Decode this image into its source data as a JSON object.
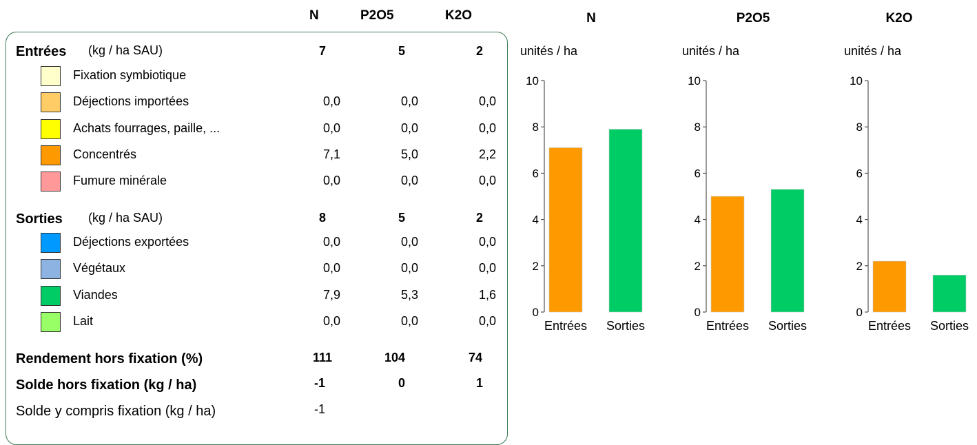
{
  "columns": [
    "N",
    "P2O5",
    "K2O"
  ],
  "panel": {
    "entrees": {
      "title": "Entrées",
      "unit": "(kg / ha SAU)",
      "totals": [
        "7",
        "5",
        "2"
      ],
      "items": [
        {
          "label": "Fixation symbiotique",
          "color": "#ffffcc",
          "values": [
            "",
            "",
            ""
          ]
        },
        {
          "label": "Déjections importées",
          "color": "#ffcc66",
          "values": [
            "0,0",
            "0,0",
            "0,0"
          ]
        },
        {
          "label": "Achats fourrages, paille, ...",
          "color": "#ffff00",
          "values": [
            "0,0",
            "0,0",
            "0,0"
          ]
        },
        {
          "label": "Concentrés",
          "color": "#ff9900",
          "values": [
            "7,1",
            "5,0",
            "2,2"
          ]
        },
        {
          "label": "Fumure minérale",
          "color": "#ff9999",
          "values": [
            "0,0",
            "0,0",
            "0,0"
          ]
        }
      ]
    },
    "sorties": {
      "title": "Sorties",
      "unit": "(kg / ha SAU)",
      "totals": [
        "8",
        "5",
        "2"
      ],
      "items": [
        {
          "label": "Déjections exportées",
          "color": "#0099ff",
          "values": [
            "0,0",
            "0,0",
            "0,0"
          ]
        },
        {
          "label": "Végétaux",
          "color": "#8db3e2",
          "values": [
            "0,0",
            "0,0",
            "0,0"
          ]
        },
        {
          "label": "Viandes",
          "color": "#00cc66",
          "values": [
            "7,9",
            "5,3",
            "1,6"
          ]
        },
        {
          "label": "Lait",
          "color": "#99ff66",
          "values": [
            "0,0",
            "0,0",
            "0,0"
          ]
        }
      ]
    },
    "rendement": {
      "label": "Rendement hors fixation (%)",
      "values": [
        "111",
        "104",
        "74"
      ]
    },
    "solde": {
      "label": "Solde hors fixation (kg / ha)",
      "values": [
        "-1",
        "0",
        "1"
      ]
    },
    "solde_fix": {
      "label": "Solde y compris fixation (kg / ha)",
      "values": [
        "-1"
      ]
    }
  },
  "chart_data": [
    {
      "type": "bar",
      "title": "N",
      "ylabel": "unités / ha",
      "categories": [
        "Entrées",
        "Sorties"
      ],
      "values": [
        7.1,
        7.9
      ],
      "colors": [
        "#ff9900",
        "#00cc66"
      ],
      "ylim": [
        0,
        10
      ],
      "yticks": [
        "0",
        "2",
        "4",
        "6",
        "8",
        "10"
      ]
    },
    {
      "type": "bar",
      "title": "P2O5",
      "ylabel": "unités / ha",
      "categories": [
        "Entrées",
        "Sorties"
      ],
      "values": [
        5.0,
        5.3
      ],
      "colors": [
        "#ff9900",
        "#00cc66"
      ],
      "ylim": [
        0,
        10
      ],
      "yticks": [
        "0",
        "2",
        "4",
        "6",
        "8",
        "10"
      ]
    },
    {
      "type": "bar",
      "title": "K2O",
      "ylabel": "unités / ha",
      "categories": [
        "Entrées",
        "Sorties"
      ],
      "values": [
        2.2,
        1.6
      ],
      "colors": [
        "#ff9900",
        "#00cc66"
      ],
      "ylim": [
        0,
        10
      ],
      "yticks": [
        "0",
        "2",
        "4",
        "6",
        "8",
        "10"
      ]
    }
  ]
}
